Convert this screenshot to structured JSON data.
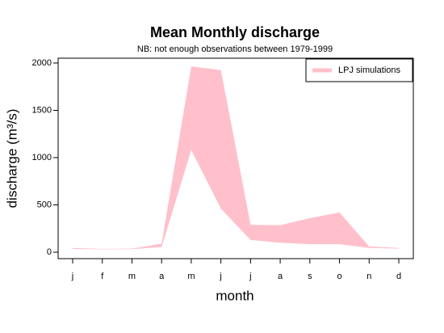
{
  "chart_data": {
    "type": "band",
    "title": "Mean Monthly discharge",
    "subtitle": "NB: not enough observations between 1979-1999",
    "x_label": "month",
    "y_label": "discharge (m³/s)",
    "categories": [
      "j",
      "f",
      "m",
      "a",
      "m",
      "j",
      "j",
      "a",
      "s",
      "o",
      "n",
      "d"
    ],
    "series": [
      {
        "name": "LPJ simulations",
        "color": "#ffc0cb",
        "high": [
          45,
          35,
          38,
          90,
          1965,
          1925,
          290,
          285,
          360,
          420,
          60,
          45
        ],
        "low": [
          35,
          30,
          32,
          55,
          1080,
          460,
          130,
          100,
          85,
          85,
          45,
          38
        ]
      }
    ],
    "ylim": [
      -68,
      2051
    ],
    "yticks": [
      0,
      500,
      1000,
      1500,
      2000
    ],
    "legend": "top-right"
  }
}
